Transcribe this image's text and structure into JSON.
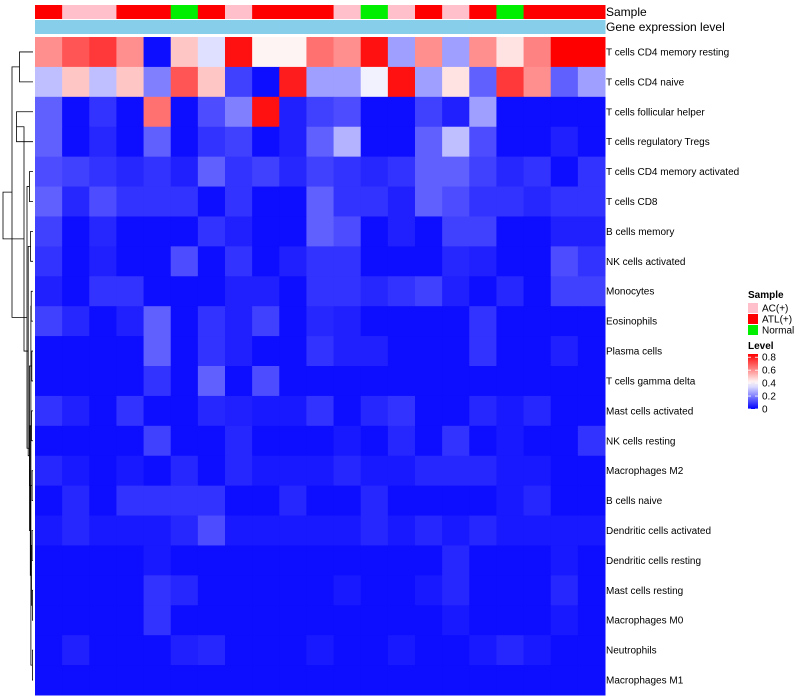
{
  "chart_data": {
    "type": "heatmap",
    "title": "",
    "annotation_labels": {
      "sample": "Sample",
      "gene": "Gene expression level"
    },
    "legend": {
      "sample_title": "Sample",
      "sample_entries": [
        {
          "label": "AC(+)",
          "color": "#ffc0cb"
        },
        {
          "label": "ATL(+)",
          "color": "#ff0000"
        },
        {
          "label": "Normal",
          "color": "#00ee00"
        }
      ],
      "level_title": "Level",
      "level_ticks": [
        "0",
        "0.2",
        "0.4",
        "0.6",
        "0.8"
      ],
      "level_tick_values": [
        0,
        0.2,
        0.4,
        0.6,
        0.8
      ],
      "level_min": 0,
      "level_max": 0.85
    },
    "colors": {
      "low": "#0000ff",
      "mid": "#ffffff",
      "high": "#ff0000",
      "gene_bar": "#87ceeb",
      "dendrogram": "#000000"
    },
    "color_midpoint": 0.4,
    "samples": [
      "ATL(+)",
      "AC(+)",
      "AC(+)",
      "ATL(+)",
      "ATL(+)",
      "Normal",
      "ATL(+)",
      "AC(+)",
      "ATL(+)",
      "ATL(+)",
      "ATL(+)",
      "AC(+)",
      "Normal",
      "AC(+)",
      "ATL(+)",
      "AC(+)",
      "ATL(+)",
      "Normal",
      "ATL(+)",
      "ATL(+)",
      "ATL(+)"
    ],
    "rows": [
      "T cells CD4 memory resting",
      "T cells CD4 naive",
      "T cells follicular helper",
      "T cells regulatory  Tregs",
      "T cells CD4 memory activated",
      "T cells CD8",
      "B cells memory",
      "NK cells activated",
      "Monocytes",
      "Eosinophils",
      "Plasma cells",
      "T cells gamma delta",
      "Mast cells activated",
      "NK cells resting",
      "Macrophages M2",
      "B cells naive",
      "Dendritic cells activated",
      "Dendritic cells resting",
      "Mast cells resting",
      "Macrophages M0",
      "Neutrophils",
      "Macrophages M1"
    ],
    "values": [
      [
        0.6,
        0.7,
        0.75,
        0.6,
        0.02,
        0.5,
        0.35,
        0.82,
        0.42,
        0.42,
        0.65,
        0.6,
        0.82,
        0.25,
        0.6,
        0.25,
        0.6,
        0.45,
        0.62,
        0.85,
        0.85
      ],
      [
        0.3,
        0.5,
        0.3,
        0.5,
        0.2,
        0.7,
        0.5,
        0.1,
        0.02,
        0.8,
        0.25,
        0.25,
        0.38,
        0.82,
        0.25,
        0.45,
        0.15,
        0.75,
        0.6,
        0.15,
        0.25
      ],
      [
        0.15,
        0.02,
        0.08,
        0.02,
        0.65,
        0.02,
        0.12,
        0.2,
        0.82,
        0.05,
        0.1,
        0.12,
        0.02,
        0.02,
        0.1,
        0.05,
        0.25,
        0.02,
        0.02,
        0.02,
        0.02
      ],
      [
        0.15,
        0.02,
        0.06,
        0.02,
        0.15,
        0.02,
        0.08,
        0.1,
        0.02,
        0.05,
        0.15,
        0.28,
        0.02,
        0.02,
        0.15,
        0.3,
        0.12,
        0.02,
        0.02,
        0.05,
        0.02
      ],
      [
        0.12,
        0.1,
        0.08,
        0.06,
        0.08,
        0.05,
        0.15,
        0.08,
        0.1,
        0.06,
        0.1,
        0.08,
        0.06,
        0.08,
        0.15,
        0.15,
        0.1,
        0.06,
        0.08,
        0.02,
        0.08
      ],
      [
        0.15,
        0.06,
        0.12,
        0.08,
        0.08,
        0.08,
        0.02,
        0.08,
        0.02,
        0.02,
        0.15,
        0.08,
        0.08,
        0.05,
        0.15,
        0.12,
        0.08,
        0.08,
        0.06,
        0.08,
        0.08
      ],
      [
        0.1,
        0.02,
        0.06,
        0.02,
        0.02,
        0.02,
        0.08,
        0.05,
        0.02,
        0.02,
        0.15,
        0.12,
        0.02,
        0.05,
        0.02,
        0.1,
        0.1,
        0.02,
        0.02,
        0.05,
        0.05
      ],
      [
        0.08,
        0.02,
        0.05,
        0.02,
        0.02,
        0.12,
        0.02,
        0.08,
        0.02,
        0.05,
        0.08,
        0.08,
        0.02,
        0.02,
        0.02,
        0.06,
        0.05,
        0.02,
        0.02,
        0.12,
        0.08
      ],
      [
        0.05,
        0.02,
        0.08,
        0.08,
        0.02,
        0.02,
        0.02,
        0.05,
        0.05,
        0.02,
        0.08,
        0.08,
        0.06,
        0.08,
        0.1,
        0.05,
        0.02,
        0.06,
        0.02,
        0.1,
        0.1
      ],
      [
        0.1,
        0.06,
        0.02,
        0.05,
        0.15,
        0.02,
        0.08,
        0.05,
        0.1,
        0.02,
        0.06,
        0.05,
        0.02,
        0.02,
        0.02,
        0.02,
        0.08,
        0.02,
        0.02,
        0.02,
        0.02
      ],
      [
        0.02,
        0.02,
        0.02,
        0.02,
        0.15,
        0.02,
        0.08,
        0.05,
        0.02,
        0.02,
        0.08,
        0.05,
        0.05,
        0.02,
        0.02,
        0.02,
        0.08,
        0.02,
        0.02,
        0.05,
        0.02
      ],
      [
        0.02,
        0.02,
        0.02,
        0.02,
        0.08,
        0.02,
        0.15,
        0.02,
        0.12,
        0.02,
        0.02,
        0.02,
        0.02,
        0.02,
        0.02,
        0.02,
        0.02,
        0.02,
        0.02,
        0.02,
        0.02
      ],
      [
        0.08,
        0.05,
        0.02,
        0.08,
        0.02,
        0.02,
        0.06,
        0.05,
        0.04,
        0.04,
        0.08,
        0.02,
        0.06,
        0.08,
        0.02,
        0.02,
        0.06,
        0.04,
        0.06,
        0.02,
        0.02
      ],
      [
        0.02,
        0.02,
        0.02,
        0.02,
        0.1,
        0.02,
        0.02,
        0.06,
        0.02,
        0.02,
        0.02,
        0.04,
        0.02,
        0.06,
        0.02,
        0.08,
        0.02,
        0.04,
        0.02,
        0.02,
        0.08
      ],
      [
        0.06,
        0.04,
        0.02,
        0.04,
        0.02,
        0.06,
        0.02,
        0.06,
        0.04,
        0.04,
        0.04,
        0.06,
        0.04,
        0.04,
        0.06,
        0.06,
        0.06,
        0.04,
        0.04,
        0.02,
        0.02
      ],
      [
        0.02,
        0.06,
        0.02,
        0.08,
        0.08,
        0.08,
        0.08,
        0.02,
        0.02,
        0.06,
        0.02,
        0.02,
        0.06,
        0.02,
        0.02,
        0.02,
        0.02,
        0.04,
        0.06,
        0.02,
        0.02
      ],
      [
        0.04,
        0.06,
        0.04,
        0.04,
        0.04,
        0.06,
        0.12,
        0.04,
        0.04,
        0.04,
        0.04,
        0.04,
        0.06,
        0.04,
        0.06,
        0.04,
        0.06,
        0.04,
        0.04,
        0.04,
        0.04
      ],
      [
        0.02,
        0.02,
        0.02,
        0.02,
        0.04,
        0.02,
        0.02,
        0.02,
        0.02,
        0.02,
        0.02,
        0.02,
        0.02,
        0.02,
        0.02,
        0.06,
        0.02,
        0.02,
        0.02,
        0.04,
        0.02
      ],
      [
        0.02,
        0.02,
        0.02,
        0.02,
        0.08,
        0.06,
        0.02,
        0.02,
        0.02,
        0.02,
        0.02,
        0.04,
        0.02,
        0.02,
        0.04,
        0.06,
        0.02,
        0.02,
        0.02,
        0.06,
        0.02
      ],
      [
        0.02,
        0.02,
        0.02,
        0.02,
        0.08,
        0.02,
        0.02,
        0.02,
        0.02,
        0.02,
        0.02,
        0.02,
        0.02,
        0.02,
        0.02,
        0.04,
        0.02,
        0.02,
        0.02,
        0.04,
        0.02
      ],
      [
        0.02,
        0.05,
        0.02,
        0.02,
        0.02,
        0.05,
        0.06,
        0.02,
        0.02,
        0.02,
        0.04,
        0.02,
        0.02,
        0.04,
        0.02,
        0.02,
        0.04,
        0.06,
        0.04,
        0.02,
        0.02
      ],
      [
        0.02,
        0.02,
        0.02,
        0.02,
        0.02,
        0.02,
        0.02,
        0.02,
        0.02,
        0.02,
        0.02,
        0.02,
        0.02,
        0.02,
        0.02,
        0.02,
        0.02,
        0.02,
        0.02,
        0.02,
        0.02
      ]
    ],
    "dendrogram": [
      {
        "a": 0,
        "b": 1,
        "h": 0.45
      },
      {
        "a": 2,
        "b": 3,
        "h": 0.55
      },
      {
        "a": 4,
        "b": 5,
        "h": 0.12
      },
      {
        "a": 6,
        "b": 7,
        "h": 0.08
      },
      {
        "a": 8,
        "b": 9,
        "h": 0.06
      },
      {
        "a": 10,
        "b": 11,
        "h": 0.04
      },
      {
        "a": 12,
        "b": 13,
        "h": 0.05
      },
      {
        "a": 14,
        "b": 15,
        "h": 0.03
      },
      {
        "a": 16,
        "b": 17,
        "h": 0.03
      },
      {
        "a": 18,
        "b": 19,
        "h": 0.02
      },
      {
        "a": 20,
        "b": 21,
        "h": 0.02
      },
      {
        "a": 30,
        "b": 31,
        "h": 0.05
      },
      {
        "a": 32,
        "b": 26,
        "h": 0.07
      },
      {
        "a": 33,
        "b": 29,
        "h": 0.09
      },
      {
        "a": 34,
        "b": 28,
        "h": 0.1
      },
      {
        "a": 35,
        "b": 27,
        "h": 0.12
      },
      {
        "a": 36,
        "b": 25,
        "h": 0.16
      },
      {
        "a": 37,
        "b": 24,
        "h": 0.2
      },
      {
        "a": 38,
        "b": 23,
        "h": 0.3
      },
      {
        "a": 39,
        "b": 22,
        "h": 0.7
      },
      {
        "a": 40,
        "b": 41,
        "h": 1.0
      }
    ],
    "dendrogram_leaf_nodes": [
      21,
      20,
      19,
      18,
      17,
      16,
      15,
      14,
      13,
      12,
      11,
      10,
      9,
      8,
      7,
      6,
      5,
      4,
      3,
      2,
      1,
      0
    ]
  }
}
